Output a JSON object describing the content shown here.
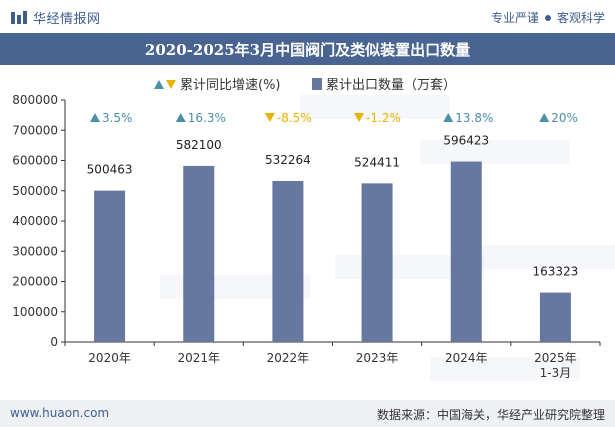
{
  "header": {
    "brand": "华经情报网",
    "right_a": "专业严谨",
    "right_b": "客观科学"
  },
  "footer": {
    "website": "www.huaon.com",
    "source": "数据来源：中国海关，华经产业研究院整理"
  },
  "colors": {
    "bar": "#6677a0",
    "up": "#4b8fa8",
    "down": "#e8b400",
    "title_band": "#4a6491"
  },
  "chart_data": {
    "type": "bar",
    "title": "2020-2025年3月中国阀门及类似装置出口数量",
    "categories": [
      "2020年",
      "2021年",
      "2022年",
      "2023年",
      "2024年",
      "2025年\n1-3月"
    ],
    "series": [
      {
        "name": "累计出口数量（万套）",
        "values": [
          500463,
          582100,
          532264,
          524411,
          596423,
          163323
        ],
        "labels": [
          "500463",
          "582100",
          "532264",
          "524411",
          "596423",
          "163323"
        ]
      },
      {
        "name": "累计同比增速(%)",
        "values": [
          3.5,
          16.3,
          -8.5,
          -1.2,
          13.8,
          20
        ],
        "labels": [
          "3.5%",
          "16.3%",
          "-8.5%",
          "-1.2%",
          "13.8%",
          "20%"
        ]
      }
    ],
    "ylim": [
      0,
      800000
    ],
    "yticks": [
      "0",
      "100000",
      "200000",
      "300000",
      "400000",
      "500000",
      "600000",
      "700000",
      "800000"
    ],
    "legend_position": "top-center",
    "grid": false
  }
}
